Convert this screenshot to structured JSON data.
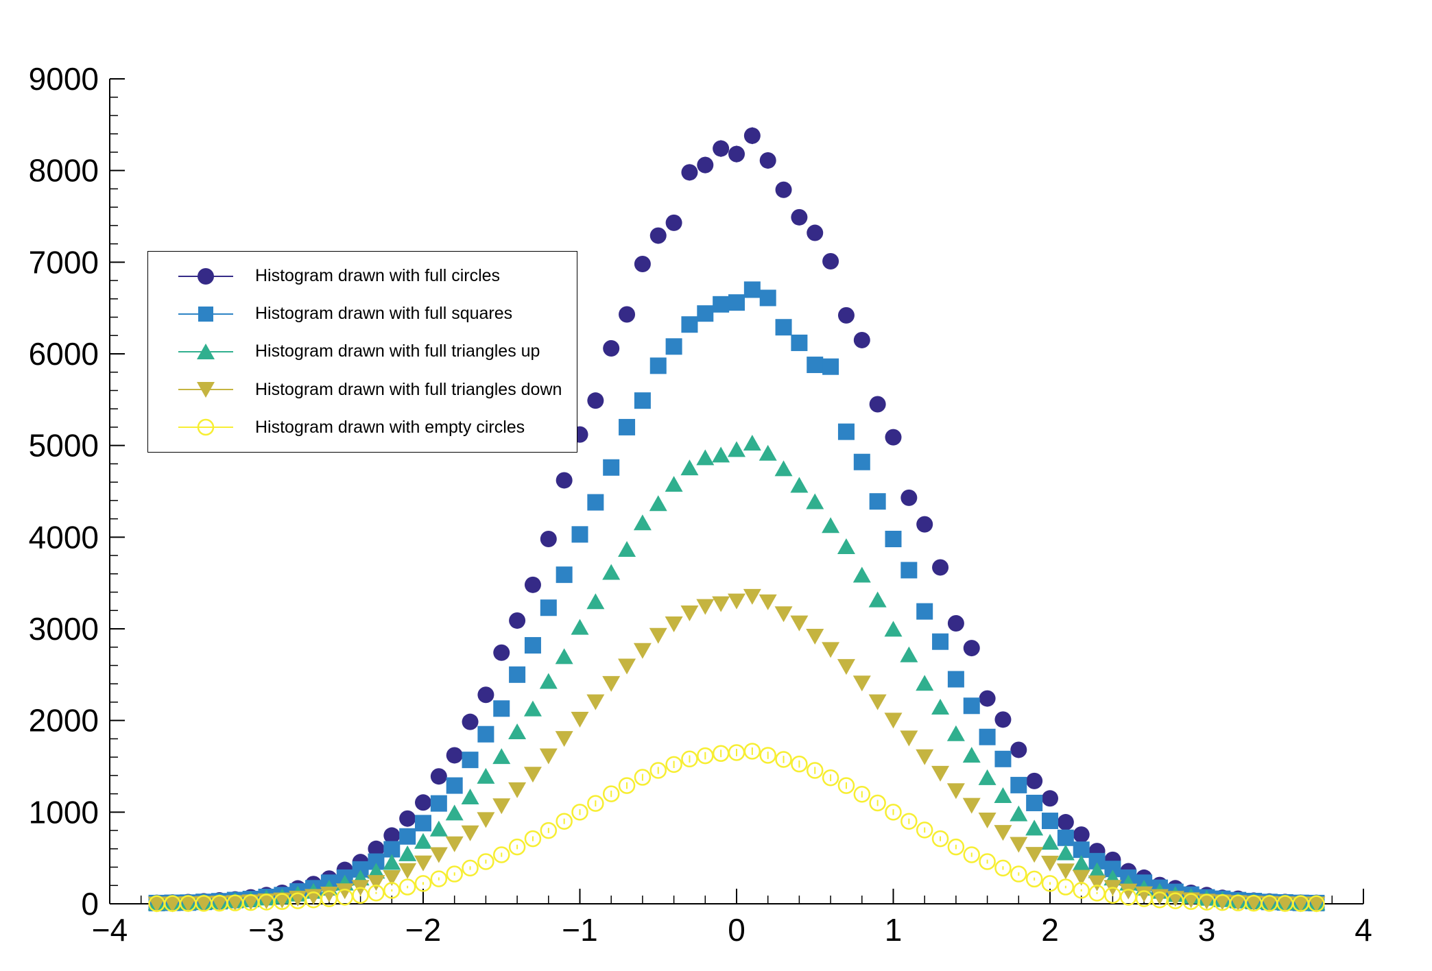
{
  "chart_data": {
    "type": "scatter",
    "title": "",
    "xlabel": "",
    "ylabel": "",
    "xlim": [
      -4,
      4
    ],
    "ylim": [
      0,
      9000
    ],
    "x_ticks": [
      -4,
      -3,
      -2,
      -1,
      0,
      1,
      2,
      3,
      4
    ],
    "y_ticks": [
      0,
      1000,
      2000,
      3000,
      4000,
      5000,
      6000,
      7000,
      8000,
      9000
    ],
    "grid": false,
    "legend_position": "top-left",
    "error_model": "sqrt",
    "background_color": "#ffffff",
    "axis_color": "#000000",
    "x": [
      -3.7,
      -3.6,
      -3.5,
      -3.4,
      -3.3,
      -3.2,
      -3.1,
      -3.0,
      -2.9,
      -2.8,
      -2.7,
      -2.6,
      -2.5,
      -2.4,
      -2.3,
      -2.2,
      -2.1,
      -2.0,
      -1.9,
      -1.8,
      -1.7,
      -1.6,
      -1.5,
      -1.4,
      -1.3,
      -1.2,
      -1.1,
      -1.0,
      -0.9,
      -0.8,
      -0.7,
      -0.6,
      -0.5,
      -0.4,
      -0.3,
      -0.2,
      -0.1,
      0.0,
      0.1,
      0.2,
      0.3,
      0.4,
      0.5,
      0.6,
      0.7,
      0.8,
      0.9,
      1.0,
      1.1,
      1.2,
      1.3,
      1.4,
      1.5,
      1.6,
      1.7,
      1.8,
      1.9,
      2.0,
      2.1,
      2.2,
      2.3,
      2.4,
      2.5,
      2.6,
      2.7,
      2.8,
      2.9,
      3.0,
      3.1,
      3.2,
      3.3,
      3.4,
      3.5,
      3.6,
      3.7
    ],
    "series": [
      {
        "name": "Histogram drawn with full circles",
        "marker": "full-circle",
        "color": "#352a87",
        "values": [
          10,
          14,
          19,
          27,
          37,
          48,
          70,
          95,
          120,
          168,
          215,
          275,
          370,
          455,
          600,
          745,
          930,
          1105,
          1390,
          1620,
          1985,
          2280,
          2740,
          3090,
          3480,
          3980,
          4620,
          5120,
          5490,
          6060,
          6430,
          6980,
          7290,
          7430,
          7980,
          8060,
          8240,
          8180,
          8380,
          8110,
          7790,
          7490,
          7320,
          7010,
          6420,
          6150,
          5450,
          5090,
          4430,
          4140,
          3670,
          3060,
          2790,
          2240,
          2010,
          1680,
          1340,
          1150,
          890,
          755,
          575,
          480,
          355,
          285,
          205,
          170,
          120,
          95,
          65,
          55,
          35,
          25,
          20,
          12,
          10
        ]
      },
      {
        "name": "Histogram drawn with full squares",
        "marker": "full-square",
        "color": "#2d83c5",
        "values": [
          8,
          11,
          13,
          21,
          28,
          41,
          52,
          75,
          95,
          135,
          170,
          230,
          285,
          375,
          460,
          595,
          735,
          880,
          1095,
          1290,
          1570,
          1850,
          2130,
          2500,
          2820,
          3230,
          3590,
          4030,
          4380,
          4760,
          5200,
          5490,
          5870,
          6080,
          6320,
          6440,
          6540,
          6560,
          6700,
          6610,
          6290,
          6120,
          5880,
          5860,
          5150,
          4820,
          4390,
          3980,
          3640,
          3190,
          2860,
          2450,
          2160,
          1820,
          1580,
          1295,
          1100,
          905,
          720,
          590,
          465,
          380,
          285,
          230,
          175,
          130,
          100,
          70,
          55,
          40,
          30,
          20,
          15,
          10,
          8
        ]
      },
      {
        "name": "Histogram drawn with full triangles up",
        "marker": "triangle-up",
        "color": "#30af8e",
        "values": [
          5,
          8,
          10,
          16,
          20,
          31,
          40,
          57,
          72,
          100,
          130,
          165,
          220,
          275,
          350,
          445,
          540,
          675,
          810,
          985,
          1160,
          1385,
          1600,
          1870,
          2120,
          2420,
          2690,
          3010,
          3290,
          3610,
          3860,
          4150,
          4360,
          4570,
          4750,
          4860,
          4890,
          4950,
          5020,
          4910,
          4740,
          4560,
          4380,
          4120,
          3890,
          3580,
          3310,
          2990,
          2710,
          2400,
          2140,
          1850,
          1615,
          1370,
          1175,
          975,
          820,
          665,
          550,
          435,
          355,
          275,
          220,
          165,
          130,
          95,
          75,
          55,
          40,
          30,
          20,
          15,
          10,
          8,
          5
        ]
      },
      {
        "name": "Histogram drawn with full triangles down",
        "marker": "triangle-down",
        "color": "#c5b440",
        "values": [
          4,
          5,
          7,
          10,
          14,
          20,
          27,
          38,
          48,
          67,
          86,
          112,
          148,
          185,
          238,
          292,
          368,
          452,
          542,
          660,
          780,
          925,
          1075,
          1250,
          1420,
          1620,
          1810,
          2020,
          2210,
          2410,
          2600,
          2770,
          2935,
          3060,
          3180,
          3250,
          3280,
          3310,
          3360,
          3300,
          3170,
          3070,
          2925,
          2780,
          2595,
          2415,
          2210,
          2010,
          1815,
          1610,
          1430,
          1240,
          1080,
          920,
          785,
          655,
          545,
          450,
          365,
          295,
          235,
          185,
          145,
          115,
          85,
          65,
          50,
          35,
          27,
          20,
          14,
          10,
          7,
          5,
          4
        ]
      },
      {
        "name": "Histogram drawn with empty circles",
        "marker": "open-circle",
        "color": "#f7ee32",
        "values": [
          2,
          3,
          4,
          5,
          7,
          10,
          14,
          19,
          25,
          33,
          43,
          55,
          73,
          92,
          118,
          146,
          183,
          222,
          272,
          325,
          390,
          460,
          535,
          620,
          710,
          800,
          900,
          1000,
          1095,
          1200,
          1290,
          1380,
          1455,
          1520,
          1580,
          1615,
          1640,
          1650,
          1665,
          1620,
          1575,
          1525,
          1455,
          1375,
          1290,
          1195,
          1100,
          1000,
          900,
          805,
          710,
          620,
          535,
          460,
          390,
          325,
          270,
          222,
          183,
          147,
          117,
          93,
          72,
          56,
          43,
          33,
          25,
          18,
          14,
          10,
          7,
          5,
          4,
          3,
          2
        ]
      }
    ]
  }
}
